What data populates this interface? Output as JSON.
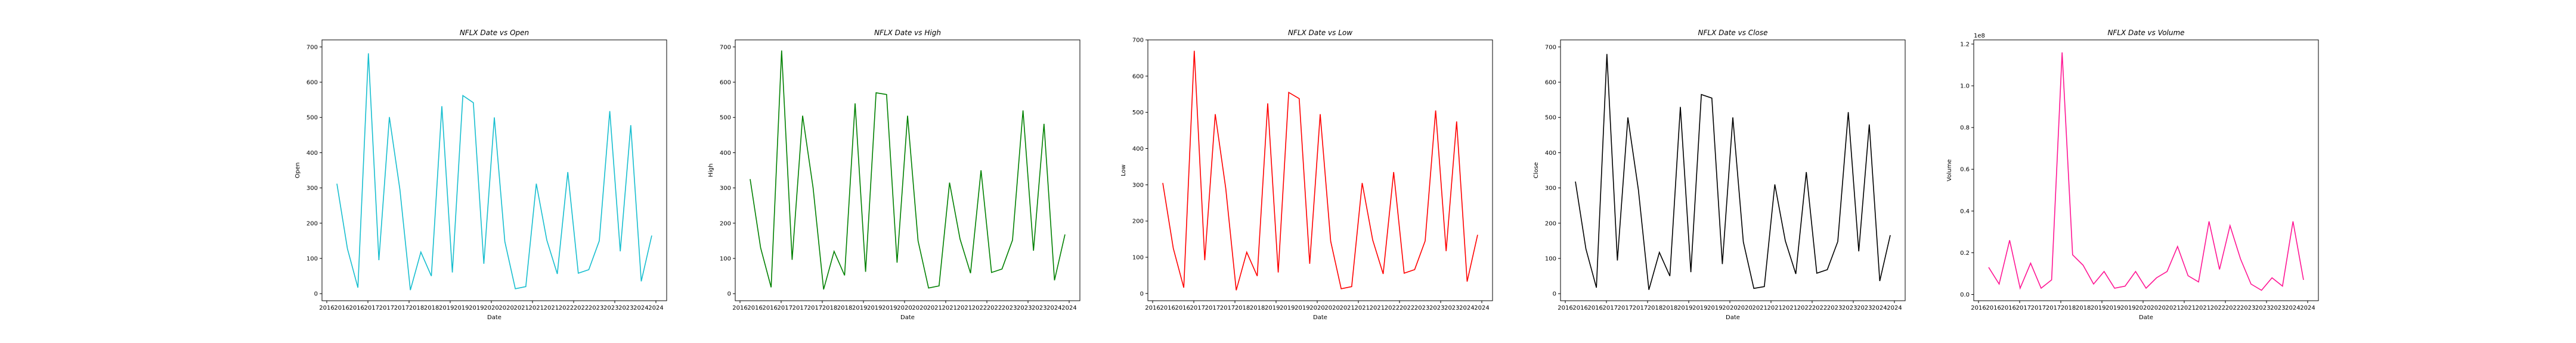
{
  "chart_data": [
    {
      "type": "line",
      "title": "NFLX Date vs Open",
      "xlabel": "Date",
      "ylabel": "Open",
      "color": "#17becf",
      "ylim": [
        -20,
        720
      ],
      "yticks": [
        0,
        100,
        200,
        300,
        400,
        500,
        600,
        700
      ],
      "ytick_labels": [
        "0",
        "100",
        "200",
        "300",
        "400",
        "500",
        "600",
        "700"
      ],
      "scale_note": "",
      "xticks": [
        "2016",
        "2017",
        "2018",
        "2019",
        "2020",
        "2021",
        "2022",
        "2023",
        "2024"
      ],
      "values": [
        312,
        128,
        17,
        682,
        95,
        501,
        296,
        10,
        118,
        50,
        532,
        60,
        562,
        542,
        85,
        500,
        148,
        14,
        20,
        312,
        152,
        56,
        345,
        58,
        68,
        150,
        518,
        120,
        478,
        35,
        165
      ]
    },
    {
      "type": "line",
      "title": "NFLX Date vs High",
      "xlabel": "Date",
      "ylabel": "High",
      "color": "#008000",
      "ylim": [
        -20,
        720
      ],
      "yticks": [
        0,
        100,
        200,
        300,
        400,
        500,
        600,
        700
      ],
      "ytick_labels": [
        "0",
        "100",
        "200",
        "300",
        "400",
        "500",
        "600",
        "700"
      ],
      "scale_note": "",
      "xticks": [
        "2016",
        "2017",
        "2018",
        "2019",
        "2020",
        "2021",
        "2022",
        "2023",
        "2024"
      ],
      "values": [
        325,
        130,
        18,
        690,
        96,
        505,
        300,
        12,
        120,
        52,
        540,
        62,
        570,
        565,
        88,
        505,
        150,
        16,
        22,
        315,
        155,
        58,
        350,
        60,
        70,
        152,
        520,
        122,
        482,
        38,
        168
      ]
    },
    {
      "type": "line",
      "title": "NFLX Date vs Low",
      "xlabel": "Date",
      "ylabel": "Low",
      "color": "#ff0000",
      "ylim": [
        -20,
        700
      ],
      "yticks": [
        0,
        100,
        200,
        300,
        400,
        500,
        600,
        700
      ],
      "ytick_labels": [
        "0",
        "100",
        "200",
        "300",
        "400",
        "500",
        "600",
        "700"
      ],
      "scale_note": "",
      "xticks": [
        "2016",
        "2017",
        "2018",
        "2019",
        "2020",
        "2021",
        "2022",
        "2023",
        "2024"
      ],
      "values": [
        305,
        125,
        16,
        670,
        92,
        495,
        290,
        9,
        114,
        48,
        525,
        58,
        555,
        538,
        82,
        495,
        144,
        13,
        19,
        305,
        148,
        54,
        335,
        56,
        66,
        145,
        505,
        117,
        475,
        33,
        162
      ]
    },
    {
      "type": "line",
      "title": "NFLX Date vs Close",
      "xlabel": "Date",
      "ylabel": "Close",
      "color": "#000000",
      "ylim": [
        -20,
        720
      ],
      "yticks": [
        0,
        100,
        200,
        300,
        400,
        500,
        600,
        700
      ],
      "ytick_labels": [
        "0",
        "100",
        "200",
        "300",
        "400",
        "500",
        "600",
        "700"
      ],
      "scale_note": "",
      "xticks": [
        "2016",
        "2017",
        "2018",
        "2019",
        "2020",
        "2021",
        "2022",
        "2023",
        "2024"
      ],
      "values": [
        318,
        127,
        17,
        680,
        94,
        500,
        295,
        11,
        117,
        50,
        530,
        61,
        565,
        555,
        84,
        500,
        147,
        15,
        20,
        310,
        150,
        56,
        345,
        58,
        68,
        148,
        515,
        120,
        480,
        36,
        166
      ]
    },
    {
      "type": "line",
      "title": "NFLX Date vs Volume",
      "xlabel": "Date",
      "ylabel": "Volume",
      "color": "#e377c2",
      "strong_color": "#ff1493",
      "ylim": [
        -0.03,
        1.22
      ],
      "yticks": [
        0.0,
        0.2,
        0.4,
        0.6,
        0.8,
        1.0,
        1.2
      ],
      "ytick_labels": [
        "0.0",
        "0.2",
        "0.4",
        "0.6",
        "0.8",
        "1.0",
        "1.2"
      ],
      "scale_note": "1e8",
      "xticks": [
        "2016",
        "2017",
        "2018",
        "2019",
        "2020",
        "2021",
        "2022",
        "2023",
        "2024"
      ],
      "values": [
        0.13,
        0.05,
        0.26,
        0.03,
        0.15,
        0.03,
        0.07,
        1.16,
        0.19,
        0.14,
        0.05,
        0.11,
        0.03,
        0.04,
        0.11,
        0.03,
        0.08,
        0.11,
        0.23,
        0.09,
        0.06,
        0.35,
        0.12,
        0.33,
        0.17,
        0.05,
        0.02,
        0.08,
        0.04,
        0.35,
        0.07
      ]
    }
  ]
}
